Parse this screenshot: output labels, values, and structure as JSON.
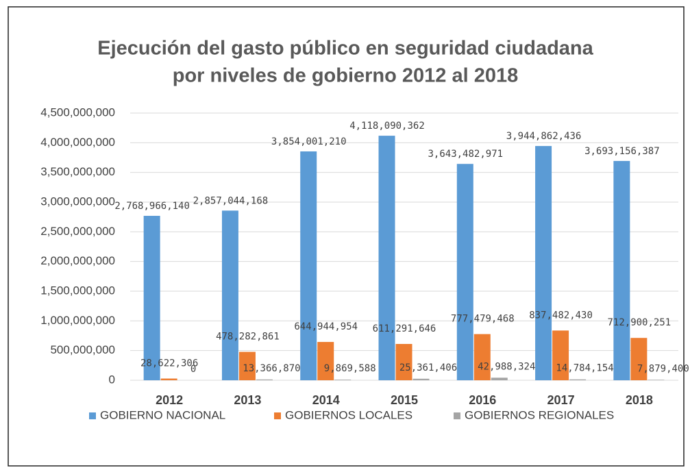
{
  "chart_data": {
    "type": "bar",
    "title": "Ejecución del gasto público en seguridad ciudadana",
    "subtitle": "por niveles de gobierno 2012 al 2018",
    "categories": [
      "2012",
      "2013",
      "2014",
      "2015",
      "2016",
      "2017",
      "2018"
    ],
    "series": [
      {
        "name": "GOBIERNO NACIONAL",
        "color": "#5b9bd5",
        "values": [
          2768966140,
          2857044168,
          3854001210,
          4118090362,
          3643482971,
          3944862436,
          3693156387
        ],
        "value_labels": [
          "2,768,966,140",
          "2,857,044,168",
          "3,854,001,210",
          "4,118,090,362",
          "3,643,482,971",
          "3,944,862,436",
          "3,693,156,387"
        ]
      },
      {
        "name": "GOBIERNOS LOCALES",
        "color": "#ed7d31",
        "values": [
          28622306,
          478282861,
          644944954,
          611291646,
          777479468,
          837482430,
          712900251
        ],
        "value_labels": [
          "28,622,306",
          "478,282,861",
          "644,944,954",
          "611,291,646",
          "777,479,468",
          "837,482,430",
          "712,900,251"
        ]
      },
      {
        "name": "GOBIERNOS REGIONALES",
        "color": "#a5a5a5",
        "values": [
          0,
          13366870,
          9869588,
          25361406,
          42988324,
          14784154,
          7879400
        ],
        "value_labels": [
          "0",
          "13,366,870",
          "9,869,588",
          "25,361,406",
          "42,988,324",
          "14,784,154",
          "7,879,400"
        ]
      }
    ],
    "ylim": [
      0,
      4500000000
    ],
    "yticks": [
      0,
      {
        "value": 500000000,
        "label": "500,000,000"
      },
      {
        "value": 1000000000,
        "label": "1,000,000,000"
      },
      {
        "value": 1500000000,
        "label": "1,500,000,000"
      },
      {
        "value": 2000000000,
        "label": "2,000,000,000"
      },
      {
        "value": 2500000000,
        "label": "2,500,000,000"
      },
      {
        "value": 3000000000,
        "label": "3,000,000,000"
      },
      {
        "value": 3500000000,
        "label": "3,500,000,000"
      },
      {
        "value": 4000000000,
        "label": "4,000,000,000"
      },
      {
        "value": 4500000000,
        "label": "4,500,000,000"
      }
    ],
    "grid": true,
    "legend": "bottom"
  }
}
